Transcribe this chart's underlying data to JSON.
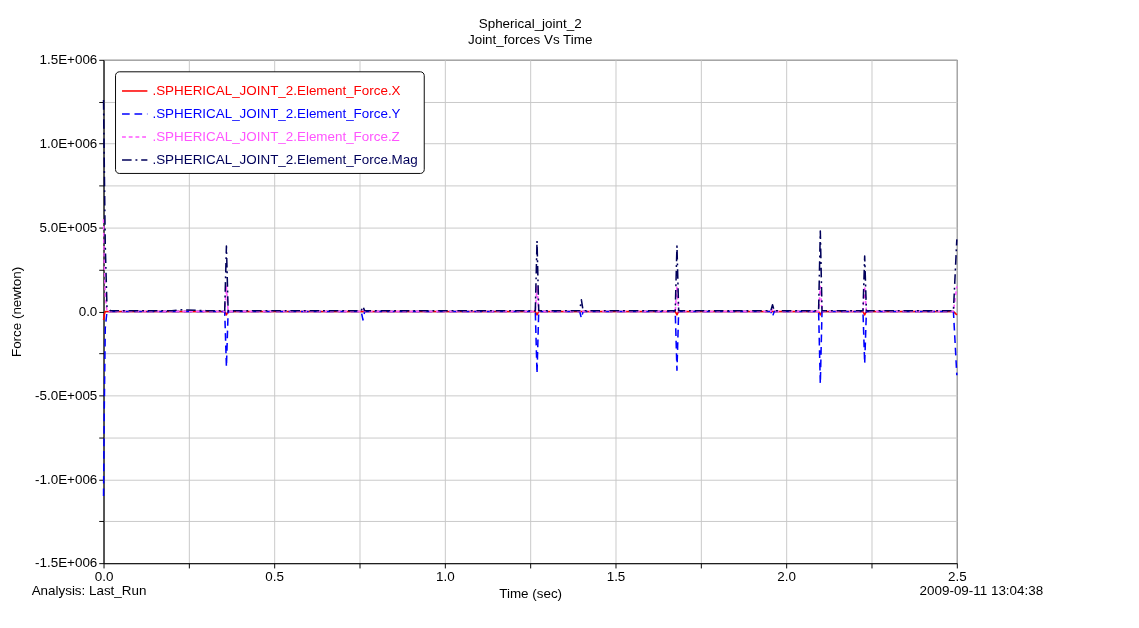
{
  "chart_data": {
    "type": "line",
    "title": "Spherical_joint_2",
    "subtitle": "Joint_forces Vs Time",
    "xlabel": "Time (sec)",
    "ylabel": "Force (newton)",
    "annotations": [
      "Analysis:  Last_Run",
      "2009-09-11 13:04:38"
    ],
    "x": [
      0,
      0.002,
      0.005,
      0.01,
      0.02,
      0.1,
      0.2,
      0.23,
      0.3,
      0.355,
      0.36,
      0.365,
      0.37,
      0.45,
      0.55,
      0.7,
      0.755,
      0.76,
      0.765,
      0.9,
      1.0,
      1.05,
      1.2,
      1.265,
      1.27,
      1.275,
      1.3,
      1.395,
      1.4,
      1.405,
      1.5,
      1.675,
      1.68,
      1.685,
      1.8,
      1.955,
      1.96,
      1.965,
      2.05,
      2.095,
      2.1,
      2.105,
      2.15,
      2.225,
      2.23,
      2.235,
      2.3,
      2.49,
      2.5
    ],
    "series": [
      {
        "name": ".SPHERICAL_JOINT_2.Element_Force.X",
        "color": "#ff0000",
        "line_style": "solid",
        "values": [
          -50000,
          -20000,
          0,
          0,
          0,
          0,
          0,
          0,
          0,
          0,
          -20000,
          0,
          0,
          0,
          0,
          0,
          0,
          0,
          0,
          0,
          0,
          0,
          0,
          0,
          -20000,
          0,
          0,
          0,
          0,
          0,
          0,
          0,
          -20000,
          0,
          0,
          0,
          0,
          0,
          0,
          0,
          -20000,
          0,
          0,
          0,
          -20000,
          0,
          0,
          0,
          -20000
        ]
      },
      {
        "name": ".SPHERICAL_JOINT_2.Element_Force.Y",
        "color": "#0000ff",
        "line_style": "dashed",
        "values": [
          -1100000,
          -600000,
          -100000,
          0,
          0,
          0,
          0,
          0,
          0,
          0,
          -330000,
          0,
          0,
          0,
          0,
          0,
          0,
          -50000,
          0,
          0,
          0,
          0,
          0,
          0,
          -370000,
          0,
          0,
          0,
          -40000,
          0,
          0,
          0,
          -350000,
          0,
          0,
          0,
          -30000,
          0,
          0,
          0,
          -430000,
          0,
          0,
          0,
          -310000,
          0,
          0,
          0,
          -380000
        ]
      },
      {
        "name": ".SPHERICAL_JOINT_2.Element_Force.Z",
        "color": "#ff55ff",
        "line_style": "dotted",
        "values": [
          550000,
          300000,
          100000,
          0,
          0,
          0,
          0,
          0,
          0,
          0,
          150000,
          0,
          0,
          0,
          0,
          0,
          0,
          10000,
          0,
          0,
          0,
          0,
          0,
          0,
          150000,
          0,
          0,
          0,
          10000,
          0,
          0,
          0,
          150000,
          0,
          0,
          0,
          10000,
          0,
          0,
          0,
          150000,
          0,
          0,
          0,
          150000,
          0,
          0,
          0,
          150000
        ]
      },
      {
        "name": ".SPHERICAL_JOINT_2.Element_Force.Mag",
        "color": "#00005a",
        "line_style": "dashdot",
        "values": [
          1260000,
          900000,
          400000,
          30000,
          5000,
          5000,
          5000,
          10000,
          5000,
          5000,
          390000,
          5000,
          5000,
          5000,
          5000,
          5000,
          5000,
          30000,
          5000,
          5000,
          5000,
          5000,
          5000,
          5000,
          420000,
          5000,
          5000,
          5000,
          70000,
          5000,
          5000,
          5000,
          390000,
          5000,
          5000,
          5000,
          40000,
          5000,
          5000,
          5000,
          480000,
          5000,
          5000,
          5000,
          330000,
          5000,
          5000,
          5000,
          430000
        ]
      }
    ],
    "xlim": [
      0,
      2.5
    ],
    "ylim": [
      -1500000,
      1500000
    ],
    "xticks": [
      {
        "value": 0,
        "label": "0.0"
      },
      {
        "value": 0.25,
        "label": null
      },
      {
        "value": 0.5,
        "label": "0.5"
      },
      {
        "value": 0.75,
        "label": null
      },
      {
        "value": 1.0,
        "label": "1.0"
      },
      {
        "value": 1.25,
        "label": null
      },
      {
        "value": 1.5,
        "label": "1.5"
      },
      {
        "value": 1.75,
        "label": null
      },
      {
        "value": 2.0,
        "label": "2.0"
      },
      {
        "value": 2.25,
        "label": null
      },
      {
        "value": 2.5,
        "label": "2.5"
      }
    ],
    "yticks": [
      {
        "value": -1500000,
        "label": "-1.5E+006"
      },
      {
        "value": -1250000,
        "label": null
      },
      {
        "value": -1000000,
        "label": "-1.0E+006"
      },
      {
        "value": -750000,
        "label": null
      },
      {
        "value": -500000,
        "label": "-5.0E+005"
      },
      {
        "value": -250000,
        "label": null
      },
      {
        "value": 0,
        "label": "0.0"
      },
      {
        "value": 250000,
        "label": null
      },
      {
        "value": 500000,
        "label": "5.0E+005"
      },
      {
        "value": 750000,
        "label": null
      },
      {
        "value": 1000000,
        "label": "1.0E+006"
      },
      {
        "value": 1250000,
        "label": null
      },
      {
        "value": 1500000,
        "label": "1.5E+006"
      }
    ],
    "grid": true,
    "legend": "top left",
    "marker": "none"
  }
}
